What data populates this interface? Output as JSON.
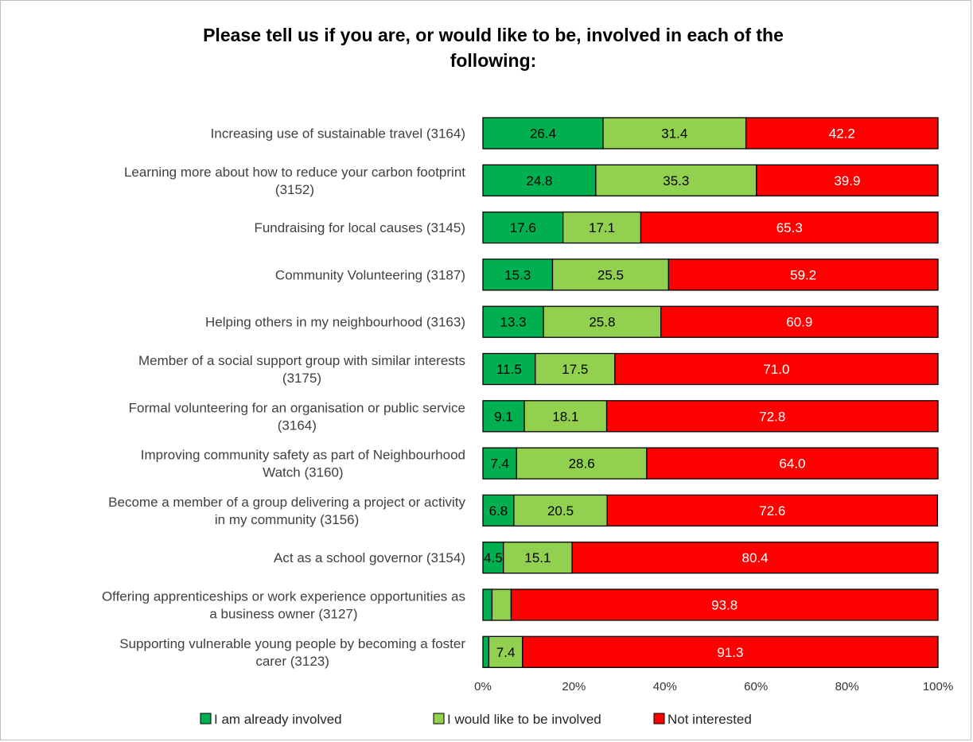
{
  "chart_data": {
    "type": "bar",
    "orientation": "horizontal",
    "stacked": true,
    "title": "Please tell us if you are, or would like to be, involved in each of the\nfollowing:",
    "categories": [
      "Increasing use of sustainable travel (3164)",
      "Learning more about how to reduce your carbon footprint\n(3152)",
      "Fundraising for local causes (3145)",
      "Community Volunteering (3187)",
      "Helping others in my neighbourhood (3163)",
      "Member of a social support group with similar interests\n(3175)",
      "Formal volunteering for an organisation or public service\n(3164)",
      "Improving community safety as part of Neighbourhood\nWatch (3160)",
      "Become a member of a group delivering a project or activity\nin my community (3156)",
      "Act as a school governor (3154)",
      "Offering apprenticeships or work experience opportunities as\na business owner (3127)",
      "Supporting vulnerable young people by becoming a foster\ncarer (3123)"
    ],
    "series": [
      {
        "name": "I am already involved",
        "color": "#00b050",
        "label_color": "#000000",
        "values": [
          26.4,
          24.8,
          17.6,
          15.3,
          13.3,
          11.5,
          9.1,
          7.4,
          6.8,
          4.5,
          2.0,
          1.3
        ],
        "labels": [
          "26.4",
          "24.8",
          "17.6",
          "15.3",
          "13.3",
          "11.5",
          "9.1",
          "7.4",
          "6.8",
          "4.5",
          "",
          ""
        ]
      },
      {
        "name": "I would like to be involved",
        "color": "#92d050",
        "label_color": "#000000",
        "values": [
          31.4,
          35.3,
          17.1,
          25.5,
          25.8,
          17.5,
          18.1,
          28.6,
          20.5,
          15.1,
          4.2,
          7.4
        ],
        "labels": [
          "31.4",
          "35.3",
          "17.1",
          "25.5",
          "25.8",
          "17.5",
          "18.1",
          "28.6",
          "20.5",
          "15.1",
          "",
          "7.4"
        ]
      },
      {
        "name": "Not interested",
        "color": "#ff0000",
        "label_color": "#ffffff",
        "values": [
          42.2,
          39.9,
          65.3,
          59.2,
          60.9,
          71.0,
          72.8,
          64.0,
          72.6,
          80.4,
          93.8,
          91.3
        ],
        "labels": [
          "42.2",
          "39.9",
          "65.3",
          "59.2",
          "60.9",
          "71.0",
          "72.8",
          "64.0",
          "72.6",
          "80.4",
          "93.8",
          "91.3"
        ]
      }
    ],
    "xlim": [
      0,
      100
    ],
    "x_ticks": [
      "0%",
      "20%",
      "40%",
      "60%",
      "80%",
      "100%"
    ],
    "grid": false,
    "legend": "bottom"
  }
}
